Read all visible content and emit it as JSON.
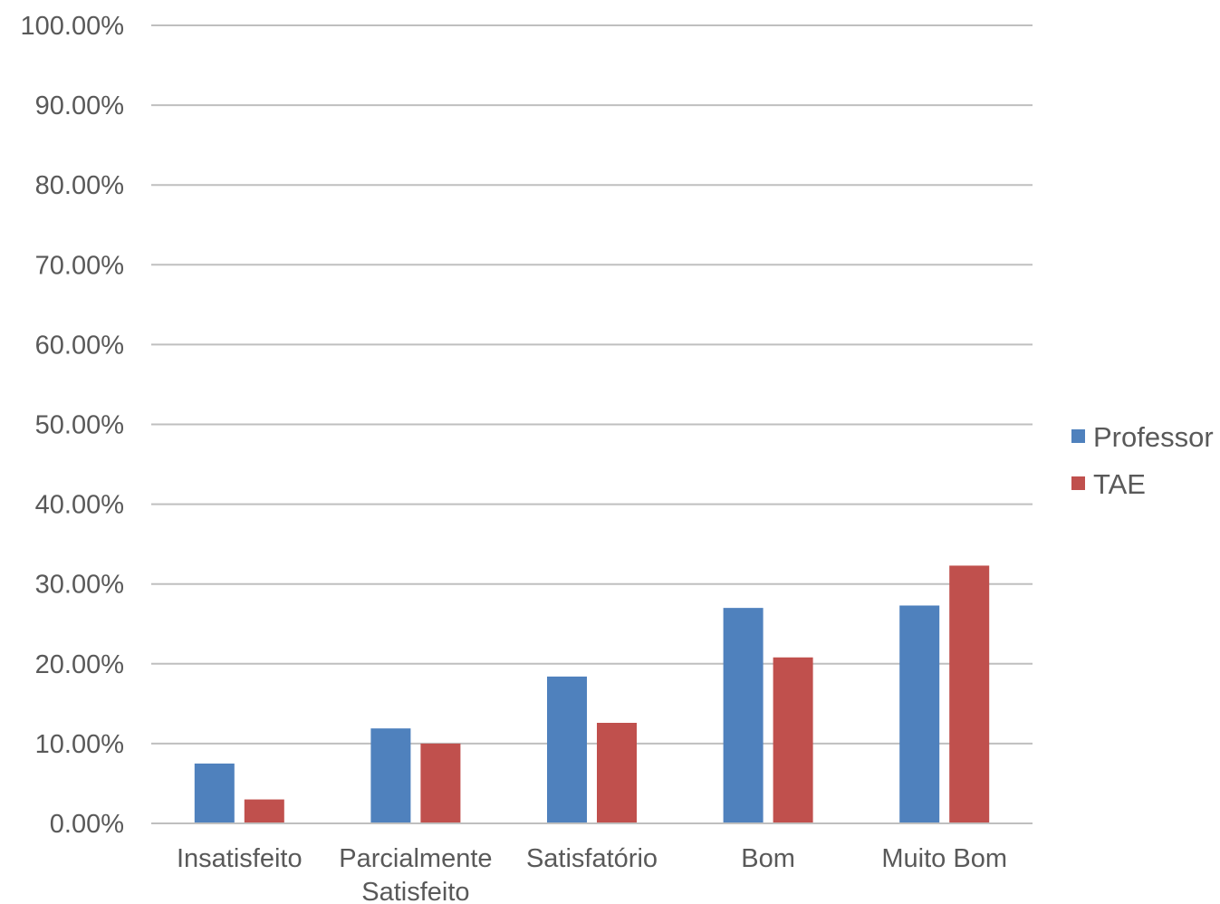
{
  "chart_data": {
    "type": "bar",
    "categories": [
      [
        "Insatisfeito"
      ],
      [
        "Parcialmente",
        "Satisfeito"
      ],
      [
        "Satisfatório"
      ],
      [
        "Bom"
      ],
      [
        "Muito Bom"
      ]
    ],
    "series": [
      {
        "name": "Professor",
        "color": "#4f81bd",
        "values": [
          7.5,
          11.9,
          18.4,
          27.0,
          27.3
        ]
      },
      {
        "name": "TAE",
        "color": "#c0504d",
        "values": [
          3.0,
          10.0,
          12.6,
          20.8,
          32.3
        ]
      }
    ],
    "ylim": [
      0,
      100
    ],
    "yticks": [
      0,
      10,
      20,
      30,
      40,
      50,
      60,
      70,
      80,
      90,
      100
    ],
    "ytick_labels": [
      "0.00%",
      "10.00%",
      "20.00%",
      "30.00%",
      "40.00%",
      "50.00%",
      "60.00%",
      "70.00%",
      "80.00%",
      "90.00%",
      "100.00%"
    ],
    "grid": true,
    "legend_position": "right",
    "gridline_color": "#bfbfbf"
  }
}
